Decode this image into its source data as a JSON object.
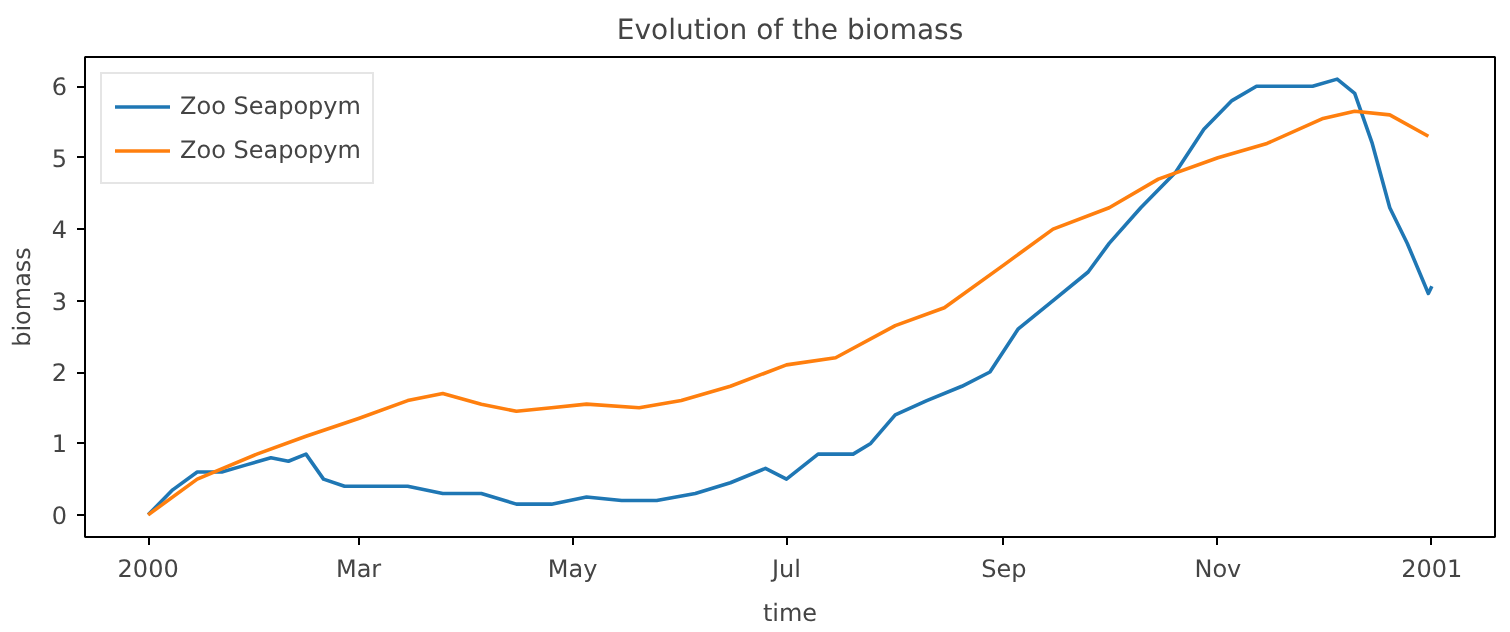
{
  "chart_data": {
    "type": "line",
    "title": "Evolution of the biomass",
    "xlabel": "time",
    "ylabel": "biomass",
    "legend": "top left",
    "grid": false,
    "xlim": [
      "1999-12-14",
      "2001-01-19"
    ],
    "ylim": [
      -0.31,
      6.41
    ],
    "xticks": [
      {
        "value": "2000-01-01",
        "label": "2000"
      },
      {
        "value": "2000-03-01",
        "label": "Mar"
      },
      {
        "value": "2000-05-01",
        "label": "May"
      },
      {
        "value": "2000-07-01",
        "label": "Jul"
      },
      {
        "value": "2000-09-01",
        "label": "Sep"
      },
      {
        "value": "2000-11-01",
        "label": "Nov"
      },
      {
        "value": "2001-01-01",
        "label": "2001"
      }
    ],
    "yticks": [
      0,
      1,
      2,
      3,
      4,
      5,
      6
    ],
    "series": [
      {
        "name": "Zoo Seapopym",
        "color": "#1f77b4",
        "x": [
          "2000-01-01",
          "2000-01-08",
          "2000-01-15",
          "2000-01-22",
          "2000-01-29",
          "2000-02-05",
          "2000-02-10",
          "2000-02-15",
          "2000-02-20",
          "2000-02-26",
          "2000-03-05",
          "2000-03-15",
          "2000-03-25",
          "2000-04-05",
          "2000-04-15",
          "2000-04-25",
          "2000-05-05",
          "2000-05-15",
          "2000-05-25",
          "2000-06-05",
          "2000-06-15",
          "2000-06-25",
          "2000-07-01",
          "2000-07-10",
          "2000-07-20",
          "2000-07-25",
          "2000-08-01",
          "2000-08-10",
          "2000-08-20",
          "2000-08-28",
          "2000-09-05",
          "2000-09-15",
          "2000-09-25",
          "2000-10-01",
          "2000-10-10",
          "2000-10-20",
          "2000-10-28",
          "2000-11-05",
          "2000-11-12",
          "2000-11-20",
          "2000-11-28",
          "2000-12-05",
          "2000-12-10",
          "2000-12-15",
          "2000-12-20",
          "2000-12-25",
          "2000-12-31",
          "2001-01-01"
        ],
        "values": [
          0.0,
          0.35,
          0.6,
          0.6,
          0.7,
          0.8,
          0.75,
          0.85,
          0.5,
          0.4,
          0.4,
          0.4,
          0.3,
          0.3,
          0.15,
          0.15,
          0.25,
          0.2,
          0.2,
          0.3,
          0.45,
          0.65,
          0.5,
          0.85,
          0.85,
          1.0,
          1.4,
          1.6,
          1.8,
          2.0,
          2.6,
          3.0,
          3.4,
          3.8,
          4.3,
          4.8,
          5.4,
          5.8,
          6.0,
          6.0,
          6.0,
          6.1,
          5.9,
          5.2,
          4.3,
          3.8,
          3.1,
          3.2
        ]
      },
      {
        "name": "Zoo Seapopym",
        "color": "#ff7f0e",
        "x": [
          "2000-01-01",
          "2000-01-15",
          "2000-02-01",
          "2000-02-15",
          "2000-03-01",
          "2000-03-15",
          "2000-03-25",
          "2000-04-05",
          "2000-04-15",
          "2000-04-25",
          "2000-05-05",
          "2000-05-20",
          "2000-06-01",
          "2000-06-15",
          "2000-07-01",
          "2000-07-15",
          "2000-08-01",
          "2000-08-15",
          "2000-09-01",
          "2000-09-15",
          "2000-10-01",
          "2000-10-15",
          "2000-11-01",
          "2000-11-15",
          "2000-12-01",
          "2000-12-10",
          "2000-12-20",
          "2000-12-31"
        ],
        "values": [
          0.0,
          0.5,
          0.85,
          1.1,
          1.35,
          1.6,
          1.7,
          1.55,
          1.45,
          1.5,
          1.55,
          1.5,
          1.6,
          1.8,
          2.1,
          2.2,
          2.65,
          2.9,
          3.5,
          4.0,
          4.3,
          4.7,
          5.0,
          5.2,
          5.55,
          5.65,
          5.6,
          5.3
        ]
      }
    ]
  }
}
